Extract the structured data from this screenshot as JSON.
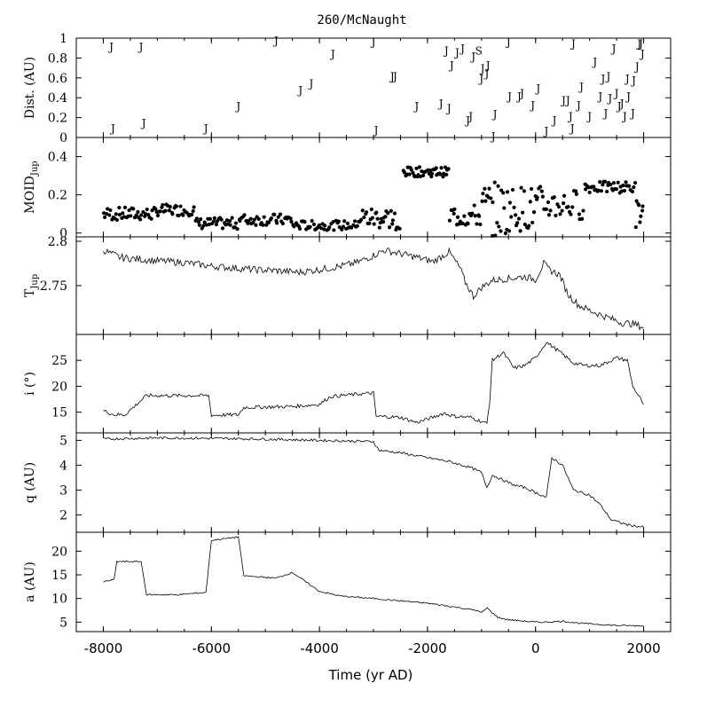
{
  "chart_data": {
    "title": "260/McNaught",
    "xlabel": "Time (yr AD)",
    "xlim": [
      -8500,
      2500
    ],
    "xticks": [
      -8000,
      -6000,
      -4000,
      -2000,
      0,
      2000
    ],
    "panels": [
      {
        "name": "dist",
        "type": "scatter",
        "ylabel": "Dist. (AU)",
        "ylim": [
          0,
          1
        ],
        "yticks": [
          0,
          0.2,
          0.4,
          0.6,
          0.8,
          1
        ],
        "points": [
          {
            "x": -7850,
            "y": 0.92,
            "label": "J"
          },
          {
            "x": -7820,
            "y": 0.1,
            "label": "J"
          },
          {
            "x": -7300,
            "y": 0.92,
            "label": "J"
          },
          {
            "x": -7250,
            "y": 0.15,
            "label": "J"
          },
          {
            "x": -6100,
            "y": 0.1,
            "label": "J"
          },
          {
            "x": -5500,
            "y": 0.32,
            "label": "J"
          },
          {
            "x": -4800,
            "y": 0.98,
            "label": "J"
          },
          {
            "x": -4350,
            "y": 0.48,
            "label": "J"
          },
          {
            "x": -4150,
            "y": 0.55,
            "label": "J"
          },
          {
            "x": -3750,
            "y": 0.85,
            "label": "J"
          },
          {
            "x": -3000,
            "y": 0.97,
            "label": "J"
          },
          {
            "x": -2950,
            "y": 0.08,
            "label": "J"
          },
          {
            "x": -2650,
            "y": 0.62,
            "label": "J"
          },
          {
            "x": -2600,
            "y": 0.62,
            "label": "J"
          },
          {
            "x": -2200,
            "y": 0.32,
            "label": "J"
          },
          {
            "x": -1750,
            "y": 0.35,
            "label": "J"
          },
          {
            "x": -1650,
            "y": 0.88,
            "label": "J"
          },
          {
            "x": -1600,
            "y": 0.3,
            "label": "J"
          },
          {
            "x": -1550,
            "y": 0.73,
            "label": "J"
          },
          {
            "x": -1450,
            "y": 0.86,
            "label": "J"
          },
          {
            "x": -1350,
            "y": 0.9,
            "label": "J"
          },
          {
            "x": -1250,
            "y": 0.18,
            "label": "J"
          },
          {
            "x": -1200,
            "y": 0.22,
            "label": "J"
          },
          {
            "x": -1150,
            "y": 0.82,
            "label": "J"
          },
          {
            "x": -1050,
            "y": 0.88,
            "label": "S"
          },
          {
            "x": -1000,
            "y": 0.6,
            "label": "J"
          },
          {
            "x": -980,
            "y": 0.7,
            "label": "J"
          },
          {
            "x": -900,
            "y": 0.65,
            "label": "J"
          },
          {
            "x": -880,
            "y": 0.73,
            "label": "J"
          },
          {
            "x": -780,
            "y": 0.02,
            "label": "J"
          },
          {
            "x": -750,
            "y": 0.24,
            "label": "J"
          },
          {
            "x": -500,
            "y": 0.97,
            "label": "J"
          },
          {
            "x": -480,
            "y": 0.42,
            "label": "J"
          },
          {
            "x": -300,
            "y": 0.42,
            "label": "J"
          },
          {
            "x": -250,
            "y": 0.45,
            "label": "J"
          },
          {
            "x": -50,
            "y": 0.33,
            "label": "J"
          },
          {
            "x": 50,
            "y": 0.5,
            "label": "J"
          },
          {
            "x": 200,
            "y": 0.07,
            "label": "J"
          },
          {
            "x": 350,
            "y": 0.18,
            "label": "J"
          },
          {
            "x": 520,
            "y": 0.38,
            "label": "J"
          },
          {
            "x": 600,
            "y": 0.38,
            "label": "J"
          },
          {
            "x": 650,
            "y": 0.22,
            "label": "J"
          },
          {
            "x": 680,
            "y": 0.1,
            "label": "J"
          },
          {
            "x": 700,
            "y": 0.95,
            "label": "J"
          },
          {
            "x": 800,
            "y": 0.33,
            "label": "J"
          },
          {
            "x": 850,
            "y": 0.52,
            "label": "J"
          },
          {
            "x": 1000,
            "y": 0.22,
            "label": "J"
          },
          {
            "x": 1100,
            "y": 0.77,
            "label": "J"
          },
          {
            "x": 1200,
            "y": 0.42,
            "label": "J"
          },
          {
            "x": 1250,
            "y": 0.6,
            "label": "J"
          },
          {
            "x": 1300,
            "y": 0.25,
            "label": "J"
          },
          {
            "x": 1350,
            "y": 0.62,
            "label": "J"
          },
          {
            "x": 1380,
            "y": 0.4,
            "label": "J"
          },
          {
            "x": 1450,
            "y": 0.9,
            "label": "J"
          },
          {
            "x": 1500,
            "y": 0.45,
            "label": "J"
          },
          {
            "x": 1550,
            "y": 0.32,
            "label": "J"
          },
          {
            "x": 1600,
            "y": 0.35,
            "label": "J"
          },
          {
            "x": 1650,
            "y": 0.22,
            "label": "J"
          },
          {
            "x": 1700,
            "y": 0.6,
            "label": "J"
          },
          {
            "x": 1720,
            "y": 0.42,
            "label": "J"
          },
          {
            "x": 1800,
            "y": 0.25,
            "label": "J"
          },
          {
            "x": 1820,
            "y": 0.58,
            "label": "J"
          },
          {
            "x": 1880,
            "y": 0.72,
            "label": "J"
          },
          {
            "x": 1920,
            "y": 0.95,
            "label": "J"
          },
          {
            "x": 1950,
            "y": 0.95,
            "label": "J"
          },
          {
            "x": 1980,
            "y": 0.85,
            "label": "J"
          }
        ]
      },
      {
        "name": "moid",
        "type": "scatter",
        "ylabel": "MOID",
        "ylabel_sub": "Jup",
        "ylim": [
          -0.02,
          0.5
        ],
        "yticks": [
          0,
          0.2,
          0.4
        ],
        "ytick_labels": [
          "0",
          "0.2",
          "0.4"
        ],
        "segments": [
          {
            "x0": -8000,
            "x1": -7000,
            "ybase": 0.1,
            "amp": 0.035,
            "n": 40
          },
          {
            "x0": -7000,
            "x1": -6300,
            "ybase": 0.12,
            "amp": 0.03,
            "n": 30
          },
          {
            "x0": -6300,
            "x1": -5500,
            "ybase": 0.05,
            "amp": 0.03,
            "n": 32
          },
          {
            "x0": -5500,
            "x1": -4500,
            "ybase": 0.07,
            "amp": 0.03,
            "n": 38
          },
          {
            "x0": -4500,
            "x1": -3300,
            "ybase": 0.04,
            "amp": 0.025,
            "n": 44
          },
          {
            "x0": -3300,
            "x1": -2600,
            "ybase": 0.08,
            "amp": 0.06,
            "n": 30
          },
          {
            "x0": -2600,
            "x1": -2500,
            "ybase": 0.02,
            "amp": 0.015,
            "n": 4
          },
          {
            "x0": -2450,
            "x1": -1600,
            "ybase": 0.32,
            "amp": 0.025,
            "n": 40
          },
          {
            "x0": -1600,
            "x1": -1000,
            "ybase": 0.09,
            "amp": 0.06,
            "n": 24
          },
          {
            "x0": -1000,
            "x1": -500,
            "ybase": 0.12,
            "amp": 0.15,
            "n": 22
          },
          {
            "x0": -500,
            "x1": 100,
            "ybase": 0.13,
            "amp": 0.12,
            "n": 26
          },
          {
            "x0": 100,
            "x1": 900,
            "ybase": 0.15,
            "amp": 0.08,
            "n": 28
          },
          {
            "x0": 900,
            "x1": 1850,
            "ybase": 0.24,
            "amp": 0.03,
            "n": 40
          },
          {
            "x0": 1850,
            "x1": 2000,
            "ybase": 0.1,
            "amp": 0.08,
            "n": 8
          }
        ]
      },
      {
        "name": "tjup",
        "type": "line",
        "ylabel": "T",
        "ylabel_sub": "Jup",
        "ylim": [
          2.695,
          2.805
        ],
        "yticks": [
          2.75,
          2.8
        ],
        "ytick_labels": [
          "2.75",
          "2.8"
        ],
        "x": [
          -8000,
          -7700,
          -7400,
          -7000,
          -6500,
          -6000,
          -5600,
          -5200,
          -4800,
          -4400,
          -4000,
          -3600,
          -3300,
          -3000,
          -2800,
          -2500,
          -2200,
          -1900,
          -1600,
          -1400,
          -1300,
          -1150,
          -1000,
          -800,
          -500,
          -200,
          0,
          150,
          250,
          450,
          600,
          800,
          1000,
          1300,
          1600,
          1800,
          2000
        ],
        "y": [
          2.79,
          2.782,
          2.78,
          2.778,
          2.776,
          2.772,
          2.77,
          2.768,
          2.767,
          2.765,
          2.768,
          2.772,
          2.776,
          2.784,
          2.79,
          2.786,
          2.782,
          2.777,
          2.788,
          2.77,
          2.754,
          2.738,
          2.748,
          2.756,
          2.758,
          2.76,
          2.757,
          2.775,
          2.768,
          2.762,
          2.74,
          2.728,
          2.722,
          2.715,
          2.708,
          2.707,
          2.703
        ],
        "noise": 0.004
      },
      {
        "name": "incl",
        "type": "line",
        "ylabel": "i (°)",
        "ylim": [
          11,
          30
        ],
        "yticks": [
          15,
          20,
          25
        ],
        "x": [
          -8000,
          -7800,
          -7600,
          -7200,
          -6900,
          -6500,
          -6050,
          -6000,
          -5500,
          -5400,
          -4500,
          -4000,
          -3800,
          -3500,
          -3000,
          -2950,
          -2500,
          -2200,
          -1900,
          -1700,
          -1500,
          -1200,
          -900,
          -850,
          -800,
          -600,
          -400,
          -200,
          0,
          200,
          400,
          700,
          900,
          1200,
          1500,
          1700,
          1800,
          2000
        ],
        "y": [
          15.3,
          14.5,
          14.5,
          18.2,
          18.2,
          18.2,
          18.2,
          14.4,
          14.5,
          15.9,
          16.1,
          16.5,
          18.0,
          18.3,
          18.7,
          14.2,
          14.0,
          13.0,
          14.0,
          14.8,
          14.2,
          14.0,
          12.8,
          17.0,
          25.0,
          26.5,
          23.5,
          24.0,
          25.5,
          28.5,
          27.0,
          24.5,
          24.0,
          24.0,
          25.5,
          25.0,
          20.0,
          16.5
        ],
        "noise": 0.35
      },
      {
        "name": "q",
        "type": "line",
        "ylabel": "q (AU)",
        "ylim": [
          1.3,
          5.3
        ],
        "yticks": [
          2,
          3,
          4,
          5
        ],
        "x": [
          -8000,
          -7000,
          -6000,
          -5000,
          -4000,
          -3000,
          -2900,
          -2500,
          -2000,
          -1600,
          -1200,
          -1000,
          -900,
          -800,
          -600,
          -400,
          -200,
          0,
          200,
          300,
          500,
          700,
          1000,
          1200,
          1400,
          1700,
          2000
        ],
        "y": [
          5.05,
          5.1,
          5.08,
          5.05,
          5.0,
          4.95,
          4.6,
          4.5,
          4.3,
          4.15,
          3.9,
          3.7,
          3.1,
          3.6,
          3.4,
          3.2,
          3.1,
          2.9,
          2.7,
          4.3,
          4.0,
          3.0,
          2.8,
          2.4,
          1.8,
          1.6,
          1.5
        ],
        "noise": 0.05
      },
      {
        "name": "a",
        "type": "line",
        "ylabel": "a (AU)",
        "ylim": [
          3,
          24
        ],
        "yticks": [
          5,
          10,
          15,
          20
        ],
        "x": [
          -8000,
          -7800,
          -7750,
          -7300,
          -7200,
          -6600,
          -6100,
          -6000,
          -5500,
          -5400,
          -4800,
          -4500,
          -4000,
          -3600,
          -3000,
          -2500,
          -2000,
          -1500,
          -1100,
          -1000,
          -900,
          -700,
          -500,
          0,
          200,
          500,
          800,
          1200,
          1500,
          2000
        ],
        "y": [
          13.5,
          14.0,
          17.8,
          17.8,
          10.8,
          10.8,
          11.3,
          22.3,
          23.0,
          14.8,
          14.3,
          15.5,
          11.5,
          10.5,
          10.0,
          9.5,
          9.0,
          8.2,
          7.5,
          7.0,
          8.0,
          6.0,
          5.5,
          5.0,
          5.0,
          5.2,
          4.8,
          4.5,
          4.3,
          4.2
        ],
        "noise": 0.15
      }
    ]
  }
}
